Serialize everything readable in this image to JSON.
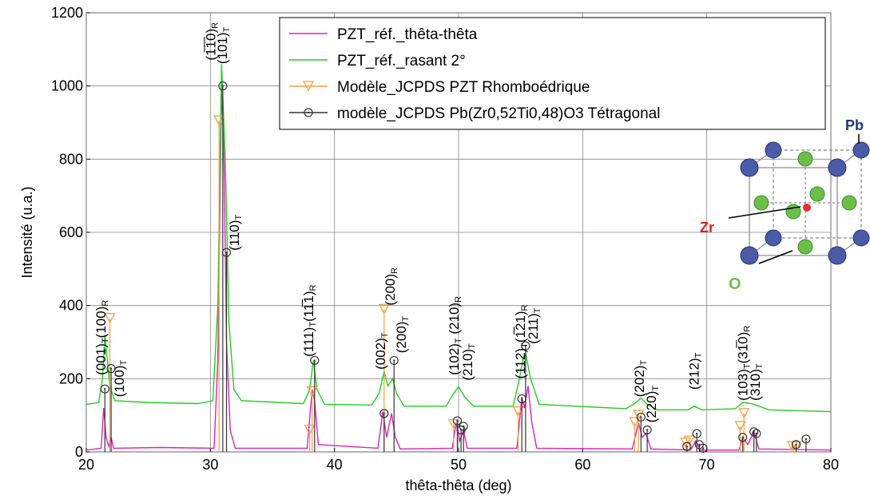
{
  "chart_data": {
    "type": "line",
    "x_label": "thêta-thêta (deg)",
    "y_label": "Intensité (u.a.)",
    "xlim": [
      20,
      80
    ],
    "xticks": [
      20,
      30,
      40,
      50,
      60,
      70,
      80
    ],
    "ylim": [
      0,
      1200
    ],
    "yticks": [
      0,
      200,
      400,
      600,
      800,
      1000,
      1200
    ],
    "grid": true,
    "legend": "upper right",
    "series": [
      {
        "name": "PZT_réf._thêta-thêta",
        "color": "#e020c0",
        "style": "line",
        "x": [
          20,
          21.2,
          21.4,
          21.6,
          21.8,
          22.0,
          22.2,
          26,
          30.3,
          30.6,
          30.9,
          31.1,
          31.3,
          31.6,
          32,
          37.8,
          38.2,
          38.4,
          38.7,
          43.5,
          43.9,
          44.2,
          44.6,
          44.9,
          45.3,
          49.5,
          49.8,
          50.1,
          50.4,
          50.7,
          54.7,
          55.1,
          55.3,
          55.6,
          55.9,
          56.3,
          64.0,
          64.5,
          64.8,
          65.1,
          65.5,
          68.7,
          69.1,
          69.5,
          72.6,
          72.9,
          73.3,
          73.8,
          74.2,
          80
        ],
        "values": [
          5,
          10,
          120,
          40,
          15,
          40,
          10,
          12,
          10,
          250,
          1000,
          800,
          300,
          60,
          10,
          10,
          170,
          140,
          20,
          10,
          110,
          40,
          105,
          40,
          8,
          10,
          80,
          30,
          60,
          10,
          10,
          150,
          120,
          180,
          80,
          10,
          8,
          80,
          40,
          50,
          8,
          5,
          30,
          5,
          5,
          40,
          20,
          55,
          8,
          5
        ]
      },
      {
        "name": "PZT_réf._rasant 2°",
        "color": "#20d020",
        "style": "line",
        "x": [
          20,
          21,
          21.3,
          21.5,
          21.7,
          21.9,
          22.3,
          25,
          29,
          30.2,
          30.6,
          30.9,
          31.2,
          31.5,
          31.9,
          32.5,
          37.5,
          38.0,
          38.3,
          38.6,
          39.2,
          43,
          43.6,
          44.0,
          44.3,
          44.7,
          45.0,
          45.6,
          49,
          49.6,
          50.0,
          50.5,
          51.2,
          54.4,
          54.9,
          55.2,
          55.4,
          55.8,
          56.5,
          63.5,
          64.3,
          64.7,
          65.2,
          66,
          68.5,
          69,
          69.6,
          72.3,
          72.9,
          73.6,
          74.2,
          75,
          80
        ],
        "values": [
          130,
          135,
          200,
          320,
          250,
          180,
          140,
          135,
          132,
          140,
          400,
          1060,
          800,
          350,
          170,
          140,
          132,
          170,
          250,
          170,
          130,
          128,
          160,
          220,
          180,
          200,
          160,
          125,
          125,
          160,
          178,
          150,
          125,
          125,
          200,
          255,
          270,
          200,
          130,
          118,
          135,
          147,
          130,
          115,
          115,
          125,
          115,
          118,
          135,
          132,
          125,
          115,
          110
        ]
      },
      {
        "name": "Modèle_JCPDS PZT Rhomboédrique",
        "color": "#f5a040",
        "style": "stem",
        "marker": "triangle",
        "x": [
          21.9,
          30.7,
          38.0,
          38.2,
          44.0,
          49.6,
          54.8,
          64.2,
          64.5,
          68.3,
          68.6,
          72.7,
          73.0,
          76.9,
          77.2
        ],
        "values": [
          365,
          905,
          60,
          165,
          390,
          75,
          110,
          80,
          100,
          25,
          30,
          70,
          105,
          15,
          15
        ]
      },
      {
        "name": "modèle_JCPDS Pb(Zr0,52Ti0,48)O3 Tétragonal",
        "color": "#333333",
        "style": "stem",
        "marker": "circle",
        "x": [
          21.5,
          22.0,
          31.0,
          31.3,
          38.4,
          44.0,
          44.8,
          49.9,
          50.2,
          50.4,
          55.1,
          55.4,
          64.7,
          65.2,
          68.4,
          69.2,
          69.4,
          69.7,
          72.9,
          73.8,
          74.0,
          77.2,
          78.0
        ],
        "values": [
          172,
          228,
          1000,
          545,
          250,
          105,
          250,
          85,
          60,
          70,
          145,
          290,
          95,
          60,
          15,
          50,
          20,
          10,
          40,
          55,
          50,
          20,
          35
        ]
      }
    ],
    "annotations": [
      [
        {
          "t": "(001)",
          "s": "T"
        },
        {
          "t": "(100)",
          "s": "R"
        }
      ],
      [
        {
          "t": "(100)",
          "s": "T"
        }
      ],
      [
        {
          "t": "(1̅1̅0)",
          "s": "R"
        }
      ],
      [
        {
          "t": "(101)",
          "s": "T"
        }
      ],
      [
        {
          "t": "(110)",
          "s": "T"
        }
      ],
      [
        {
          "t": "(111)",
          "s": "T"
        },
        {
          "t": "(11̅1)",
          "s": "R"
        }
      ],
      [
        {
          "t": "(002)",
          "s": "T"
        }
      ],
      [
        {
          "t": "(200)",
          "s": "R"
        }
      ],
      [
        {
          "t": "(200)",
          "s": "T"
        }
      ],
      [
        {
          "t": "(102)",
          "s": "T"
        },
        {
          "t": " (210)",
          "s": "R"
        }
      ],
      [
        {
          "t": "(210)",
          "s": "T"
        }
      ],
      [
        {
          "t": "(112)",
          "s": "T"
        },
        {
          "t": "(1̅21)",
          "s": "R"
        }
      ],
      [
        {
          "t": "(211)",
          "s": "T"
        }
      ],
      [
        {
          "t": "(202)",
          "s": "T"
        }
      ],
      [
        {
          "t": "(220)",
          "s": "T"
        }
      ],
      [
        {
          "t": "(212)",
          "s": "T"
        }
      ],
      [
        {
          "t": "(103)",
          "s": "T"
        },
        {
          "t": "(31̅0)",
          "s": "R"
        }
      ],
      [
        {
          "t": "(310)",
          "s": "T"
        }
      ]
    ]
  },
  "inset": {
    "pb": "Pb",
    "zr": "Zr",
    "o": "O"
  }
}
